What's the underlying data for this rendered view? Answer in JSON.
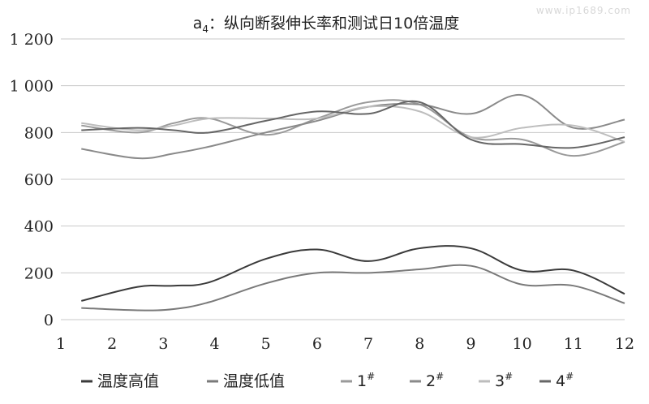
{
  "watermark": "www.ip1689.com",
  "chart_data": {
    "type": "line",
    "title_main": "a",
    "title_sub": "4",
    "title_rest": "：纵向断裂伸长率和测试日10倍温度",
    "xlabel": "",
    "ylabel": "",
    "x_ticks": [
      1,
      2,
      3,
      4,
      5,
      6,
      7,
      8,
      9,
      10,
      11,
      12
    ],
    "y_ticks": [
      0,
      200,
      400,
      600,
      800,
      1000,
      1200
    ],
    "y_tick_labels": [
      "0",
      "200",
      "400",
      "600",
      "800",
      "1 000",
      "1 200"
    ],
    "ylim": [
      0,
      1200
    ],
    "grid": true,
    "legend_position": "bottom",
    "series": [
      {
        "name": "温度高值",
        "color": "#3a3a3a",
        "x": [
          1.4,
          2.5,
          3.2,
          3.9,
          5,
          6,
          7,
          8,
          9,
          10,
          11,
          12
        ],
        "values": [
          80,
          140,
          145,
          160,
          260,
          300,
          250,
          305,
          305,
          210,
          210,
          110
        ]
      },
      {
        "name": "温度低值",
        "color": "#7a7a7a",
        "x": [
          1.4,
          2.5,
          3.2,
          3.9,
          5,
          6,
          7,
          8,
          9,
          10,
          11,
          12
        ],
        "values": [
          50,
          40,
          45,
          75,
          155,
          200,
          200,
          215,
          230,
          150,
          145,
          70
        ]
      },
      {
        "name": "1",
        "sup": "#",
        "color": "#9a9a9a",
        "x": [
          1.4,
          2.5,
          3.2,
          3.9,
          5,
          6,
          7,
          8,
          9,
          10,
          11,
          12
        ],
        "values": [
          830,
          800,
          840,
          860,
          790,
          860,
          930,
          920,
          780,
          770,
          700,
          760
        ]
      },
      {
        "name": "2",
        "sup": "#",
        "color": "#8a8a8a",
        "x": [
          1.4,
          2.5,
          3.2,
          3.9,
          5,
          6,
          7,
          8,
          9,
          10,
          11,
          12
        ],
        "values": [
          730,
          690,
          710,
          740,
          800,
          850,
          910,
          920,
          880,
          960,
          820,
          855
        ]
      },
      {
        "name": "3",
        "sup": "#",
        "color": "#bdbdbd",
        "x": [
          1.4,
          2.5,
          3.2,
          3.9,
          5,
          6,
          7,
          8,
          9,
          10,
          11,
          12
        ],
        "values": [
          840,
          810,
          830,
          860,
          860,
          860,
          910,
          890,
          780,
          820,
          830,
          760
        ]
      },
      {
        "name": "4",
        "sup": "#",
        "color": "#666666",
        "x": [
          1.4,
          2.5,
          3.2,
          3.9,
          5,
          6,
          7,
          8,
          9,
          10,
          11,
          12
        ],
        "values": [
          810,
          820,
          810,
          800,
          850,
          890,
          880,
          930,
          770,
          750,
          735,
          780
        ]
      }
    ]
  }
}
